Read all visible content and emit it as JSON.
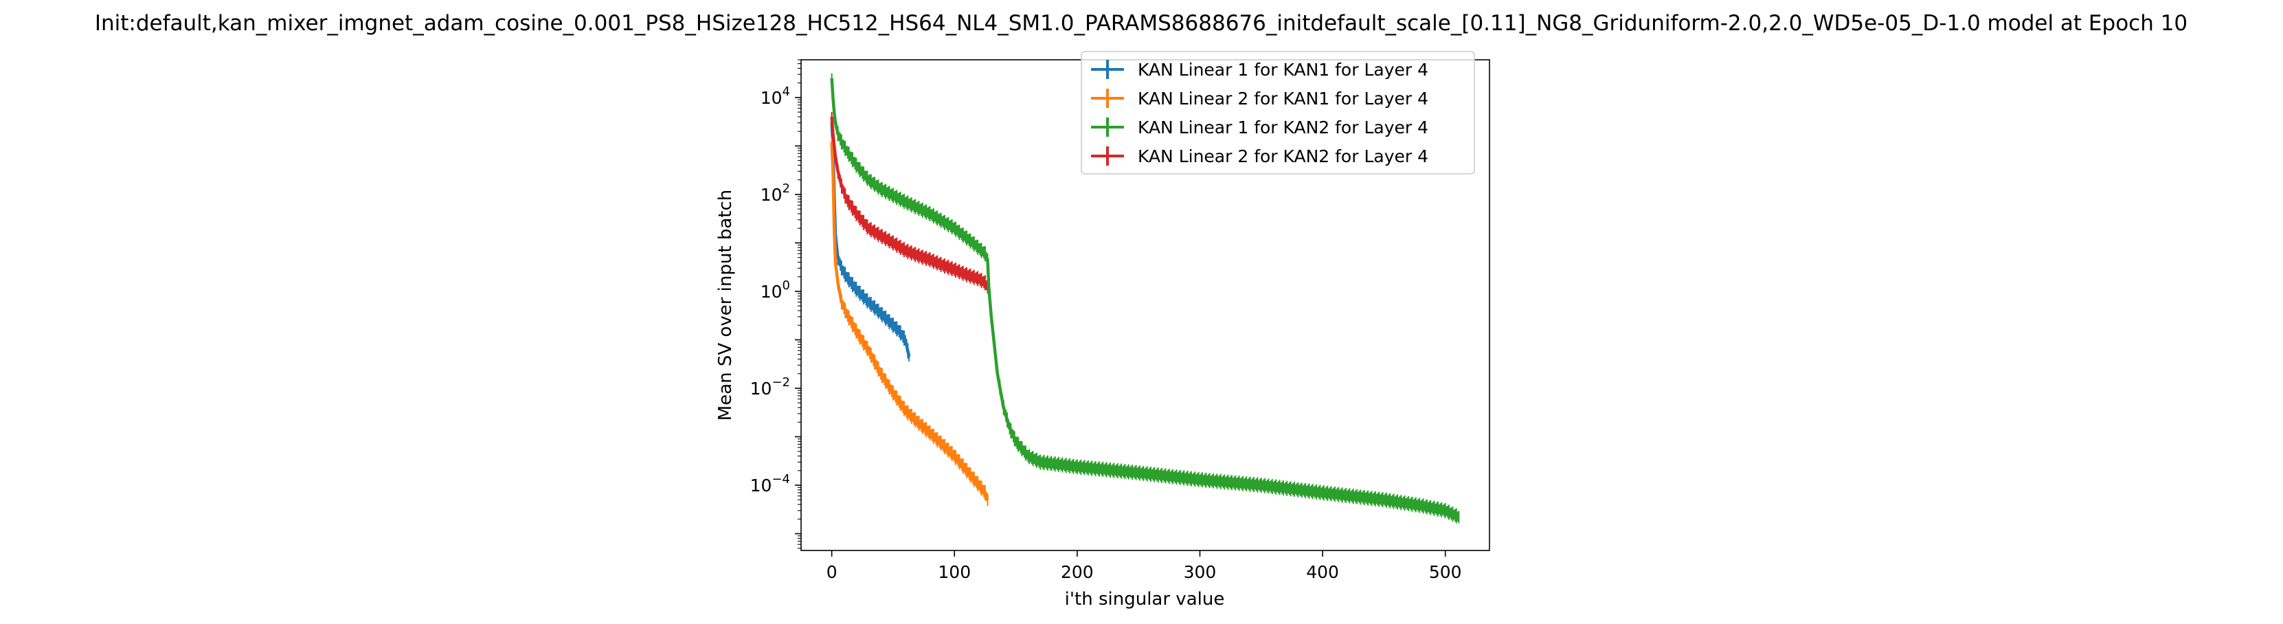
{
  "chart_data": {
    "type": "line",
    "title": "Init:default,kan_mixer_imgnet_adam_cosine_0.001_PS8_HSize128_HC512_HS64_NL4_SM1.0_PARAMS8688676_initdefault_scale_[0.11]_NG8_Griduniform-2.0,2.0_WD5e-05_D-1.0 model at Epoch 10",
    "xlabel": "i'th singular value",
    "ylabel": "Mean SV over input batch",
    "xlim": [
      -25,
      536
    ],
    "ylim": [
      4.5e-06,
      60000
    ],
    "yscale": "log",
    "x_ticks": [
      "0",
      "100",
      "200",
      "300",
      "400",
      "500"
    ],
    "x_tick_values": [
      0,
      100,
      200,
      300,
      400,
      500
    ],
    "y_ticks": [
      {
        "base": "10",
        "exp": "4",
        "value": 10000
      },
      {
        "base": "10",
        "exp": "2",
        "value": 100
      },
      {
        "base": "10",
        "exp": "0",
        "value": 1
      },
      {
        "base": "10",
        "exp": "−2",
        "value": 0.01
      },
      {
        "base": "10",
        "exp": "−4",
        "value": 0.0001
      }
    ],
    "grid": false,
    "legend_position": "top-right",
    "series": [
      {
        "name": "KAN Linear 1 for KAN1 for Layer 4",
        "color": "#1f77b4",
        "x": [
          0,
          1,
          2,
          3,
          5,
          8,
          12,
          20,
          30,
          40,
          50,
          55,
          60,
          63
        ],
        "y": [
          3000,
          1000,
          100,
          15,
          5,
          3.0,
          2.0,
          1.1,
          0.6,
          0.35,
          0.2,
          0.15,
          0.1,
          0.045
        ]
      },
      {
        "name": "KAN Linear 2 for KAN1 for Layer 4",
        "color": "#ff7f0e",
        "x": [
          0,
          1,
          2,
          3,
          5,
          8,
          12,
          20,
          30,
          40,
          50,
          60,
          70,
          80,
          90,
          100,
          110,
          120,
          125,
          127
        ],
        "y": [
          1200,
          300,
          20,
          4,
          1.5,
          0.6,
          0.35,
          0.15,
          0.06,
          0.02,
          0.008,
          0.0035,
          0.002,
          0.0012,
          0.0007,
          0.0004,
          0.0002,
          0.0001,
          7e-05,
          5e-05
        ]
      },
      {
        "name": "KAN Linear 1 for KAN2 for Layer 4",
        "color": "#2ca02c",
        "x": [
          0,
          1,
          2,
          3,
          5,
          8,
          12,
          20,
          30,
          40,
          60,
          80,
          100,
          115,
          125,
          127,
          128,
          130,
          135,
          140,
          145,
          150,
          160,
          170,
          200,
          250,
          300,
          350,
          400,
          450,
          480,
          500,
          511
        ],
        "y": [
          25000,
          10000,
          5000,
          3000,
          1800,
          1200,
          800,
          400,
          200,
          130,
          70,
          40,
          20,
          10,
          6,
          4.5,
          1.2,
          0.3,
          0.02,
          0.004,
          0.0015,
          0.0008,
          0.0004,
          0.0003,
          0.00024,
          0.00018,
          0.00013,
          0.0001,
          7e-05,
          5e-05,
          3.8e-05,
          3e-05,
          2.2e-05
        ]
      },
      {
        "name": "KAN Linear 2 for KAN2 for Layer 4",
        "color": "#d62728",
        "x": [
          0,
          1,
          2,
          3,
          5,
          8,
          12,
          20,
          30,
          40,
          50,
          60,
          70,
          80,
          90,
          100,
          110,
          120,
          125,
          127
        ],
        "y": [
          4000,
          1800,
          1000,
          600,
          300,
          150,
          80,
          40,
          20,
          14,
          10,
          7,
          5.5,
          4.5,
          3.5,
          2.8,
          2.2,
          1.8,
          1.5,
          1.2
        ]
      }
    ]
  }
}
